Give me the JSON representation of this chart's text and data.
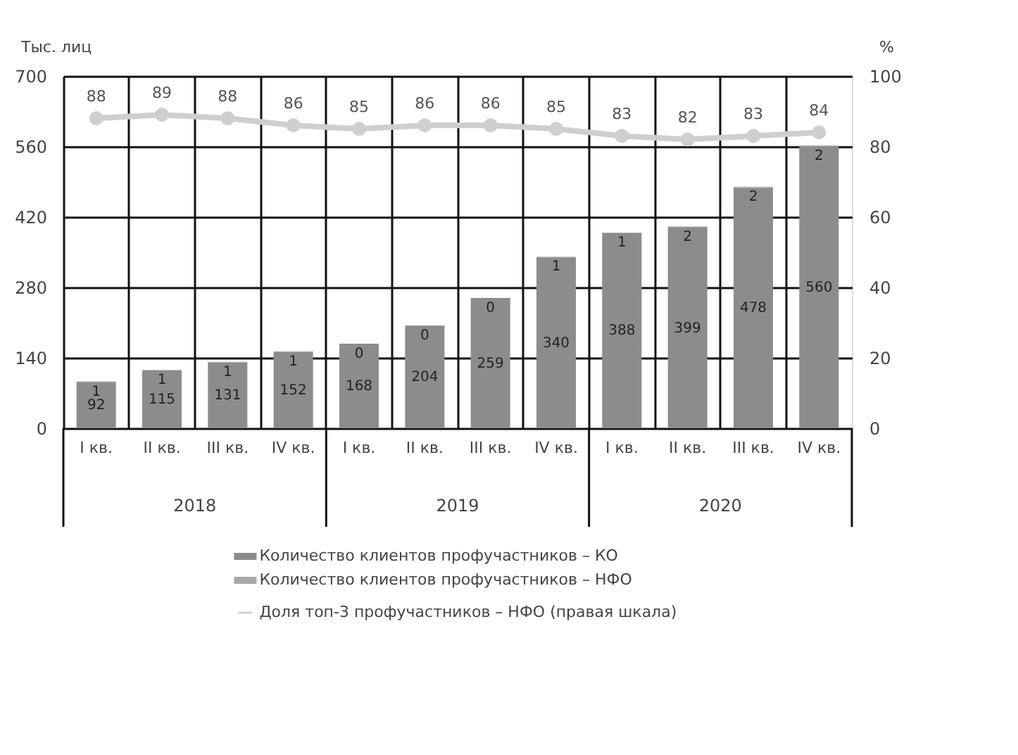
{
  "chart_data": {
    "type": "bar",
    "stacked": true,
    "ylabel": "Тыс. лиц",
    "y2label": "%",
    "categories": [
      "I кв.",
      "II кв.",
      "III кв.",
      "IV кв.",
      "I кв.",
      "II кв.",
      "III кв.",
      "IV кв.",
      "I кв.",
      "II кв.",
      "III кв.",
      "IV кв."
    ],
    "annotations": [
      "2018",
      "2019",
      "2020"
    ],
    "series": [
      {
        "name": "Количество клиентов профучастников – КО",
        "color": "#8c8c8c",
        "values": [
          92,
          115,
          131,
          152,
          168,
          204,
          259,
          340,
          388,
          399,
          478,
          560
        ]
      },
      {
        "name": "Количество клиентов профучастников – НФО",
        "color": "#a8a8a8",
        "values": [
          1,
          1,
          1,
          1,
          0,
          0,
          0,
          1,
          1,
          2,
          2,
          2
        ]
      },
      {
        "name": "Доля топ-3 профучастников – НФО (правая шкала)",
        "type": "line",
        "axis": "y2",
        "color": "#cfcfcf",
        "marker": "circle",
        "values": [
          88,
          89,
          88,
          86,
          85,
          86,
          86,
          85,
          83,
          82,
          83,
          84
        ]
      }
    ],
    "ylim": [
      0,
      700
    ],
    "yticks": [
      0,
      140,
      280,
      420,
      560,
      700
    ],
    "y2lim": [
      0,
      100
    ],
    "y2ticks": [
      0,
      20,
      40,
      60,
      80,
      100
    ],
    "grid": true,
    "legend": "bottom",
    "data_labels": true
  }
}
